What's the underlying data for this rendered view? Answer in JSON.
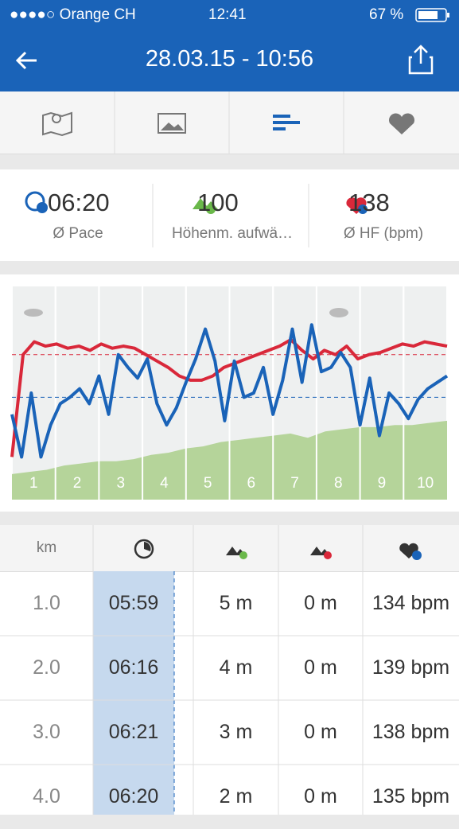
{
  "status": {
    "carrier": "Orange CH",
    "time": "12:41",
    "battery": "67 %"
  },
  "header": {
    "title": "28.03.15 - 10:56"
  },
  "stats": [
    {
      "value": "06:20",
      "label": "Ø Pace"
    },
    {
      "value": "100",
      "label": "Höhenm. aufwä…"
    },
    {
      "value": "138",
      "label": "Ø HF (bpm)"
    }
  ],
  "chart": {
    "km_labels": [
      "1",
      "2",
      "3",
      "4",
      "5",
      "6",
      "7",
      "8",
      "9",
      "10"
    ],
    "ylim": [
      0,
      100
    ],
    "heart_rate": [
      20,
      68,
      74,
      72,
      73,
      71,
      72,
      70,
      73,
      71,
      72,
      71,
      68,
      65,
      62,
      58,
      56,
      56,
      58,
      62,
      64,
      66,
      68,
      70,
      72,
      75,
      70,
      66,
      70,
      68,
      72,
      66,
      68,
      69,
      71,
      73,
      72,
      74,
      73,
      72
    ],
    "heart_rate_avg": 68,
    "pace": [
      40,
      20,
      50,
      20,
      35,
      45,
      48,
      52,
      45,
      58,
      40,
      68,
      62,
      57,
      66,
      45,
      35,
      43,
      55,
      66,
      80,
      65,
      37,
      65,
      48,
      50,
      62,
      40,
      56,
      80,
      55,
      82,
      60,
      62,
      69,
      62,
      35,
      57,
      30,
      50,
      45,
      38,
      47,
      52,
      55,
      58
    ],
    "pace_avg": 48,
    "elevation": [
      12,
      13,
      14,
      16,
      17,
      18,
      18,
      19,
      21,
      22,
      24,
      25,
      27,
      28,
      29,
      30,
      31,
      29,
      32,
      33,
      34,
      34,
      35,
      35,
      36,
      37
    ]
  },
  "table": {
    "header": "km",
    "rows": [
      [
        "1.0",
        "05:59",
        "5 m",
        "0 m",
        "134 bpm"
      ],
      [
        "2.0",
        "06:16",
        "4 m",
        "0 m",
        "139 bpm"
      ],
      [
        "3.0",
        "06:21",
        "3 m",
        "0 m",
        "138 bpm"
      ],
      [
        "4.0",
        "06:20",
        "2 m",
        "0 m",
        "135 bpm"
      ]
    ]
  }
}
